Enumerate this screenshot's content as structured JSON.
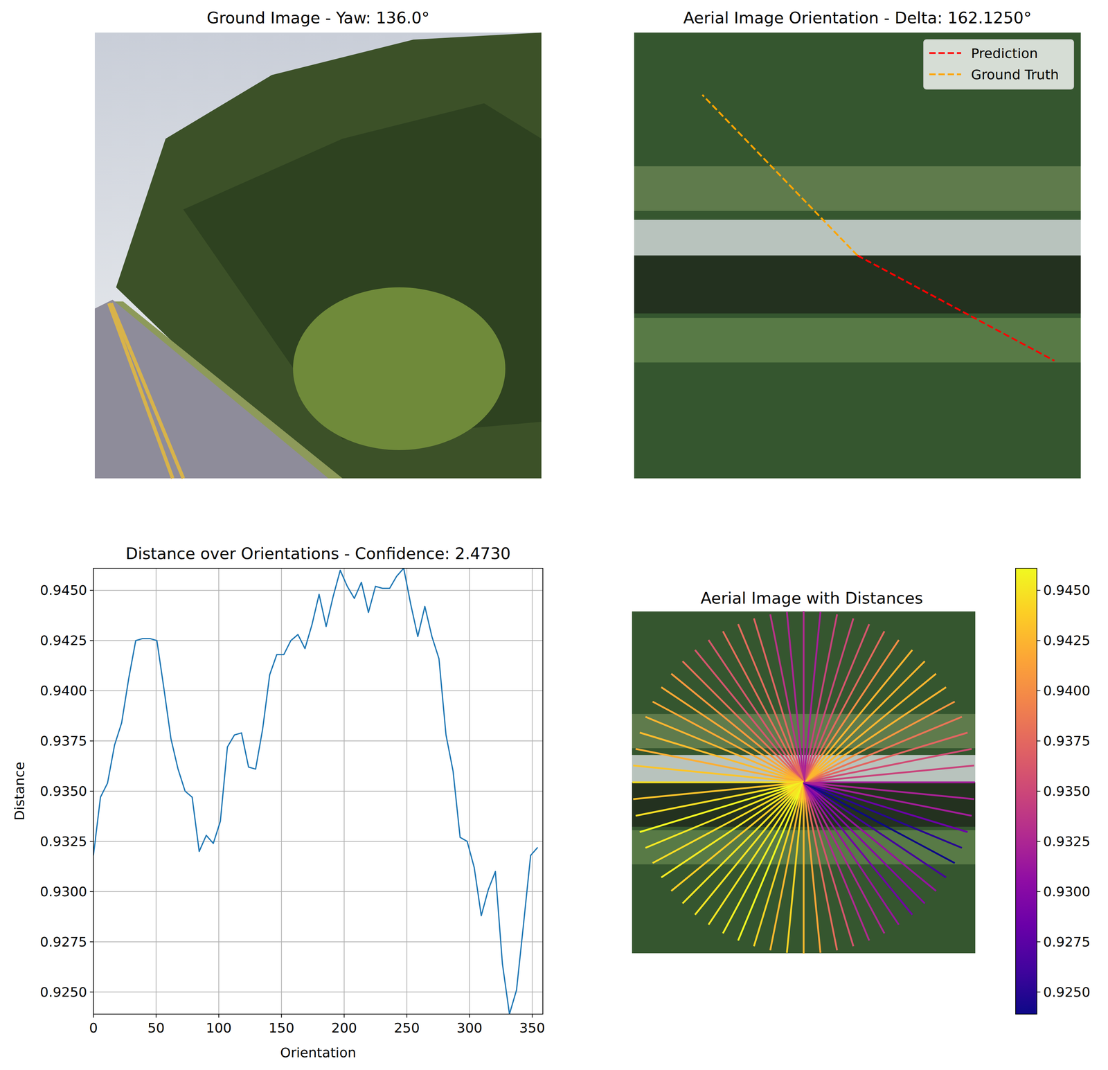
{
  "chart_data": [
    {
      "type": "image",
      "title": "Ground Image - Yaw: 136.0°"
    },
    {
      "type": "image",
      "title": "Aerial Image Orientation - Delta: 162.1250°",
      "legend": "upper right",
      "series": [
        {
          "name": "Prediction",
          "color": "#ff0000",
          "line_style": "dashed",
          "orientation": 331.875
        },
        {
          "name": "Ground Truth",
          "color": "#ffa500",
          "line_style": "dashed",
          "orientation": 134
        }
      ]
    },
    {
      "type": "line",
      "title": "Distance over Orientations - Confidence: 2.4730",
      "x_label": "Orientation",
      "y_label": "Distance",
      "color": "#1f77b4",
      "grid": true,
      "x": [
        0,
        5.625,
        11.25,
        16.875,
        22.5,
        28.125,
        33.75,
        39.375,
        45,
        50.625,
        56.25,
        61.875,
        67.5,
        73.125,
        78.75,
        84.375,
        90,
        95.625,
        101.25,
        106.875,
        112.5,
        118.125,
        123.75,
        129.375,
        135,
        140.625,
        146.25,
        151.875,
        157.5,
        163.125,
        168.75,
        174.375,
        180,
        185.625,
        191.25,
        196.875,
        202.5,
        208.125,
        213.75,
        219.375,
        225,
        230.625,
        236.25,
        241.875,
        247.5,
        253.125,
        258.75,
        264.375,
        270,
        275.625,
        281.25,
        286.875,
        292.5,
        298.125,
        303.75,
        309.375,
        315,
        320.625,
        326.25,
        331.875,
        337.5,
        343.125,
        348.75,
        354.375
      ],
      "values": [
        0.9318,
        0.9347,
        0.9354,
        0.9373,
        0.9384,
        0.9406,
        0.9425,
        0.9426,
        0.9426,
        0.9425,
        0.9401,
        0.9376,
        0.9361,
        0.935,
        0.9347,
        0.932,
        0.9328,
        0.9324,
        0.9335,
        0.9372,
        0.9378,
        0.9379,
        0.9362,
        0.9361,
        0.9381,
        0.9408,
        0.9418,
        0.9418,
        0.9425,
        0.9428,
        0.9421,
        0.9433,
        0.9448,
        0.9432,
        0.9447,
        0.946,
        0.9452,
        0.9446,
        0.9454,
        0.9439,
        0.9452,
        0.9451,
        0.9451,
        0.9457,
        0.9461,
        0.9443,
        0.9427,
        0.9442,
        0.9427,
        0.9416,
        0.9378,
        0.936,
        0.9327,
        0.9325,
        0.9312,
        0.9288,
        0.9301,
        0.931,
        0.9264,
        0.9239,
        0.9251,
        0.9284,
        0.9318,
        0.9322
      ],
      "xlim": [
        0,
        358.5
      ],
      "xticks": [
        0,
        50,
        100,
        150,
        200,
        250,
        300,
        350
      ],
      "ylim": [
        0.9239,
        0.9461
      ],
      "yticks": [
        {
          "value": 0.925,
          "label": "0.9250"
        },
        {
          "value": 0.9275,
          "label": "0.9275"
        },
        {
          "value": 0.93,
          "label": "0.9300"
        },
        {
          "value": 0.9325,
          "label": "0.9325"
        },
        {
          "value": 0.935,
          "label": "0.9350"
        },
        {
          "value": 0.9375,
          "label": "0.9375"
        },
        {
          "value": 0.94,
          "label": "0.9400"
        },
        {
          "value": 0.9425,
          "label": "0.9425"
        },
        {
          "value": 0.945,
          "label": "0.9450"
        }
      ]
    },
    {
      "type": "radial",
      "title": "Aerial Image with Distances",
      "x": [
        0,
        5.625,
        11.25,
        16.875,
        22.5,
        28.125,
        33.75,
        39.375,
        45,
        50.625,
        56.25,
        61.875,
        67.5,
        73.125,
        78.75,
        84.375,
        90,
        95.625,
        101.25,
        106.875,
        112.5,
        118.125,
        123.75,
        129.375,
        135,
        140.625,
        146.25,
        151.875,
        157.5,
        163.125,
        168.75,
        174.375,
        180,
        185.625,
        191.25,
        196.875,
        202.5,
        208.125,
        213.75,
        219.375,
        225,
        230.625,
        236.25,
        241.875,
        247.5,
        253.125,
        258.75,
        264.375,
        270,
        275.625,
        281.25,
        286.875,
        292.5,
        298.125,
        303.75,
        309.375,
        315,
        320.625,
        326.25,
        331.875,
        337.5,
        343.125,
        348.75,
        354.375
      ],
      "values": [
        0.9318,
        0.9347,
        0.9354,
        0.9373,
        0.9384,
        0.9406,
        0.9425,
        0.9426,
        0.9426,
        0.9425,
        0.9401,
        0.9376,
        0.9361,
        0.935,
        0.9347,
        0.932,
        0.9328,
        0.9324,
        0.9335,
        0.9372,
        0.9378,
        0.9379,
        0.9362,
        0.9361,
        0.9381,
        0.9408,
        0.9418,
        0.9418,
        0.9425,
        0.9428,
        0.9421,
        0.9433,
        0.9448,
        0.9432,
        0.9447,
        0.946,
        0.9452,
        0.9446,
        0.9454,
        0.9439,
        0.9452,
        0.9451,
        0.9451,
        0.9457,
        0.9461,
        0.9443,
        0.9427,
        0.9442,
        0.9427,
        0.9416,
        0.9378,
        0.936,
        0.9327,
        0.9325,
        0.9312,
        0.9288,
        0.9301,
        0.931,
        0.9264,
        0.9239,
        0.9251,
        0.9284,
        0.9318,
        0.9322
      ],
      "colorbar": {
        "range": [
          0.9239,
          0.9461
        ],
        "ticks": [
          {
            "value": 0.925,
            "label": "0.9250"
          },
          {
            "value": 0.9275,
            "label": "0.9275"
          },
          {
            "value": 0.93,
            "label": "0.9300"
          },
          {
            "value": 0.9325,
            "label": "0.9325"
          },
          {
            "value": 0.935,
            "label": "0.9350"
          },
          {
            "value": 0.9375,
            "label": "0.9375"
          },
          {
            "value": 0.94,
            "label": "0.9400"
          },
          {
            "value": 0.9425,
            "label": "0.9425"
          },
          {
            "value": 0.945,
            "label": "0.9450"
          }
        ]
      }
    }
  ]
}
